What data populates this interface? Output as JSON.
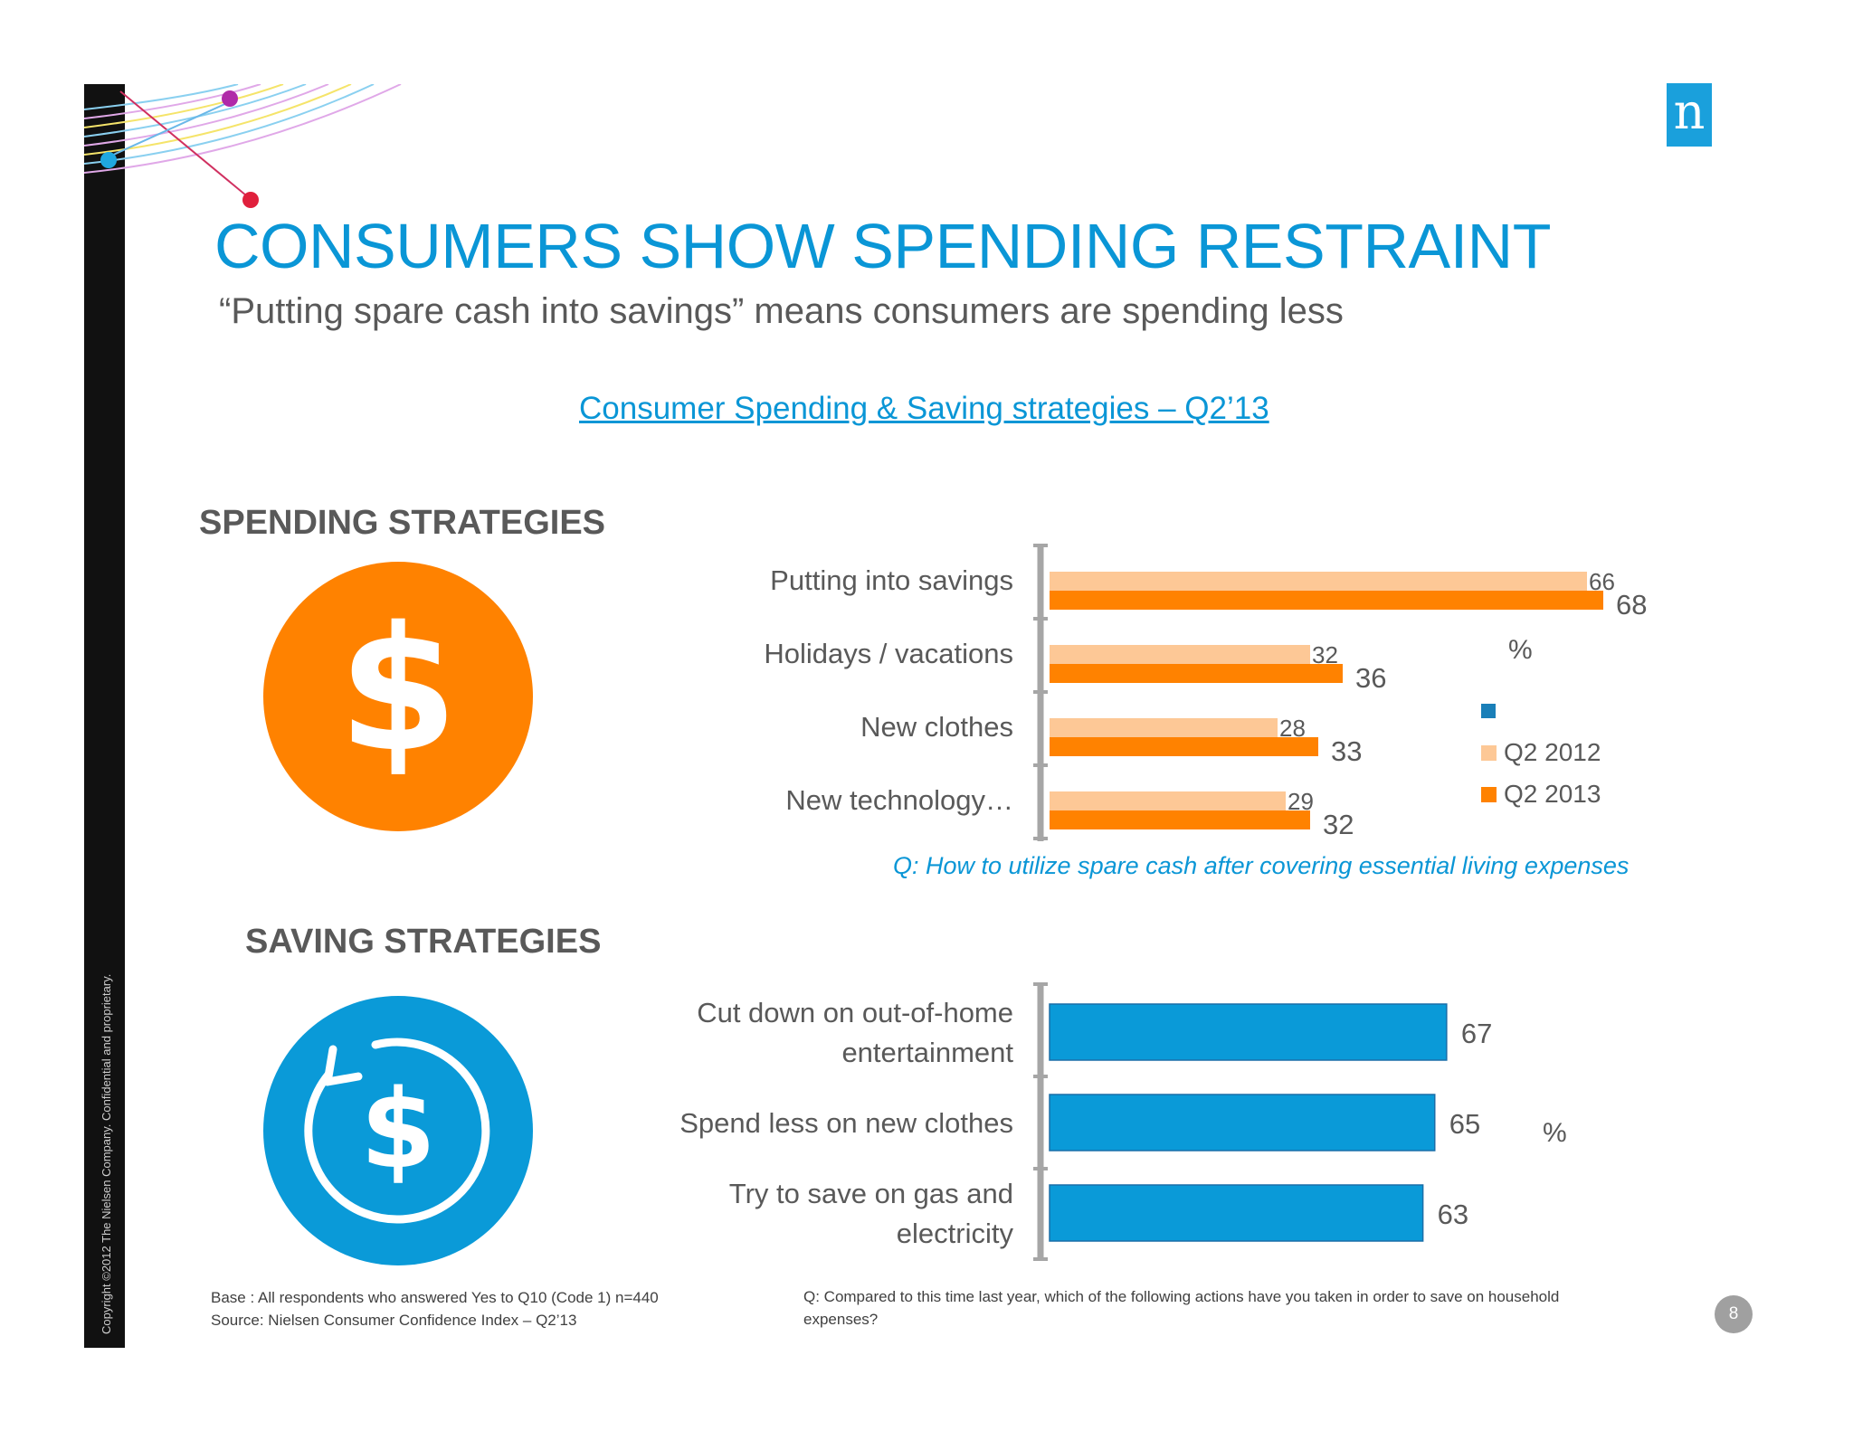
{
  "title": "CONSUMERS SHOW SPENDING RESTRAINT",
  "subtitle": "“Putting spare cash into savings” means consumers are spending less",
  "chart_heading": "Consumer Spending & Saving strategies – Q2’13",
  "copyright": "Copyright ©2012 The Nielsen Company. Confidential and proprietary.",
  "logo_letter": "n",
  "colors": {
    "accent_blue": "#0a96d6",
    "q2012": "#fdc896",
    "q2013": "#ff8200",
    "saving_bar": "#0a9ad8"
  },
  "chart_data": [
    {
      "type": "bar",
      "section": "SPENDING STRATEGIES",
      "orientation": "horizontal",
      "categories": [
        "Putting into savings",
        "Holidays / vacations",
        "New clothes",
        "New technology…"
      ],
      "series": [
        {
          "name": "Q2 2012",
          "values": [
            66,
            32,
            28,
            29
          ],
          "color": "#fdc896"
        },
        {
          "name": "Q2 2013",
          "values": [
            68,
            36,
            33,
            32
          ],
          "color": "#ff8200"
        }
      ],
      "unit": "%",
      "legend_position": "right",
      "question": "Q: How to utilize spare cash after covering essential living expenses"
    },
    {
      "type": "bar",
      "section": "SAVING STRATEGIES",
      "orientation": "horizontal",
      "categories": [
        "Cut down on out-of-home entertainment",
        "Spend less on new clothes",
        "Try to save on gas and electricity"
      ],
      "series": [
        {
          "values": [
            67,
            65,
            63
          ],
          "color": "#0a9ad8"
        }
      ],
      "unit": "%"
    }
  ],
  "footnotes": {
    "base": "Base : All respondents who answered Yes to Q10 (Code 1) n=440",
    "source": "Source: Nielsen Consumer Confidence Index – Q2’13",
    "saving_question": "Q: Compared to this time last year, which of the following actions have you taken in order to save on household expenses?"
  },
  "page_number": "8"
}
